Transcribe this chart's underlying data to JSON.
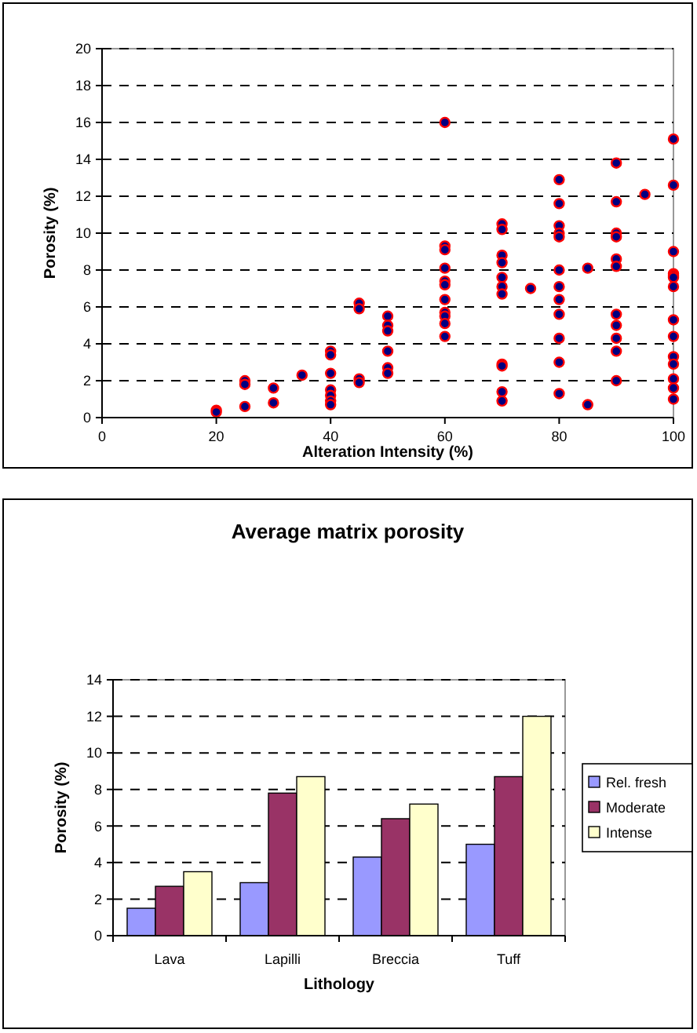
{
  "chart_data": [
    {
      "type": "scatter",
      "xlabel": "Alteration Intensity (%)",
      "ylabel": "Porosity (%)",
      "xlim": [
        0,
        100
      ],
      "xticks": [
        0,
        20,
        40,
        60,
        80,
        100
      ],
      "ylim": [
        0,
        20
      ],
      "yticks": [
        0,
        2,
        4,
        6,
        8,
        10,
        12,
        14,
        16,
        18,
        20
      ],
      "grid": "y",
      "marker": "circle",
      "series": [
        {
          "color": "#000080",
          "x": [
            20,
            20,
            25,
            25,
            25,
            30,
            30,
            35,
            40,
            40,
            40,
            40,
            40,
            40,
            40,
            45,
            45,
            45,
            45,
            50,
            50,
            50,
            50,
            50,
            50,
            60,
            60,
            60,
            60,
            60,
            60,
            60,
            60,
            60,
            60,
            60,
            70,
            70,
            70,
            70,
            70,
            70,
            70,
            70,
            70,
            70,
            70,
            75,
            80,
            80,
            80,
            80,
            80,
            80,
            80,
            80,
            80,
            80,
            80,
            80,
            85,
            85,
            90,
            90,
            90,
            90,
            90,
            90,
            90,
            90,
            90,
            90,
            90,
            95,
            100,
            100,
            100,
            100,
            100,
            100,
            100,
            100,
            100,
            100,
            100,
            100,
            100,
            100
          ],
          "values": [
            0.4,
            0.3,
            2.0,
            1.8,
            0.6,
            1.6,
            0.8,
            2.3,
            3.6,
            3.4,
            2.4,
            1.5,
            1.2,
            0.9,
            0.7,
            6.2,
            5.9,
            2.1,
            1.9,
            5.5,
            5.0,
            4.7,
            3.6,
            2.7,
            2.4,
            16.0,
            9.3,
            9.1,
            8.1,
            7.4,
            7.2,
            6.4,
            5.7,
            5.5,
            5.1,
            4.4,
            10.5,
            10.2,
            8.8,
            8.4,
            7.6,
            7.1,
            6.7,
            2.9,
            2.8,
            1.4,
            0.9,
            7.0,
            12.9,
            11.6,
            10.4,
            10.0,
            9.8,
            8.0,
            7.1,
            6.4,
            5.6,
            4.3,
            3.0,
            1.3,
            8.1,
            0.7,
            13.8,
            11.7,
            10.0,
            9.8,
            8.6,
            8.2,
            5.6,
            5.0,
            4.3,
            3.6,
            2.0,
            12.1,
            15.1,
            12.6,
            9.0,
            7.8,
            7.7,
            7.6,
            7.1,
            5.3,
            4.4,
            3.3,
            2.9,
            2.1,
            1.6,
            1.0
          ]
        }
      ]
    },
    {
      "type": "bar",
      "title": "Average matrix porosity",
      "xlabel": "Lithology",
      "ylabel": "Porosity (%)",
      "categories": [
        "Lava",
        "Lapilli",
        "Breccia",
        "Tuff"
      ],
      "ylim": [
        0,
        14
      ],
      "yticks": [
        0,
        2,
        4,
        6,
        8,
        10,
        12,
        14
      ],
      "grid": "y",
      "legend": "right",
      "series": [
        {
          "name": "Rel. fresh",
          "color": "#9999ff",
          "values": [
            1.5,
            2.9,
            4.3,
            5.0
          ]
        },
        {
          "name": "Moderate",
          "color": "#993366",
          "values": [
            2.7,
            7.8,
            6.4,
            8.7
          ]
        },
        {
          "name": "Intense",
          "color": "#ffffcc",
          "values": [
            3.5,
            8.7,
            7.2,
            12.0
          ]
        }
      ]
    }
  ]
}
